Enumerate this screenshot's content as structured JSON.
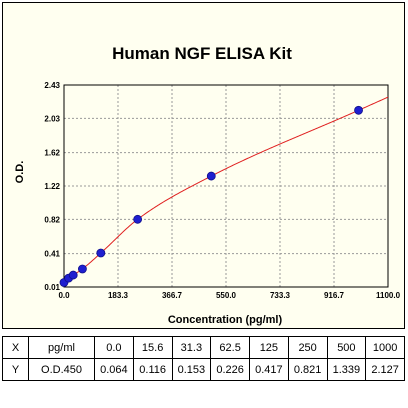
{
  "chart_data": {
    "type": "scatter",
    "title": "Human NGF ELISA Kit",
    "xlabel": "Concentration (pg/ml)",
    "ylabel": "O.D.",
    "xlim": [
      0,
      1100
    ],
    "ylim": [
      0.01,
      2.43
    ],
    "x_ticks": [
      "0.0",
      "183.3",
      "366.7",
      "550.0",
      "733.3",
      "916.7",
      "1100.0"
    ],
    "x_tick_values": [
      0,
      183.3,
      366.7,
      550,
      733.3,
      916.7,
      1100
    ],
    "y_ticks": [
      "0.01",
      "0.41",
      "0.82",
      "1.22",
      "1.62",
      "2.03",
      "2.43"
    ],
    "y_tick_values": [
      0.01,
      0.41,
      0.82,
      1.22,
      1.62,
      2.03,
      2.43
    ],
    "grid": true,
    "points": {
      "x": [
        0,
        15.6,
        31.3,
        62.5,
        125,
        250,
        500,
        1000
      ],
      "y": [
        0.064,
        0.116,
        0.153,
        0.226,
        0.417,
        0.821,
        1.339,
        2.127
      ]
    },
    "point_color": "#1f1fd0",
    "curve_color": "#e02020"
  },
  "table": {
    "rows": [
      {
        "label": "X",
        "unit": "pg/ml",
        "values": [
          "0.0",
          "15.6",
          "31.3",
          "62.5",
          "125",
          "250",
          "500",
          "1000"
        ]
      },
      {
        "label": "Y",
        "unit": "O.D.450",
        "values": [
          "0.064",
          "0.116",
          "0.153",
          "0.226",
          "0.417",
          "0.821",
          "1.339",
          "2.127"
        ]
      }
    ]
  }
}
